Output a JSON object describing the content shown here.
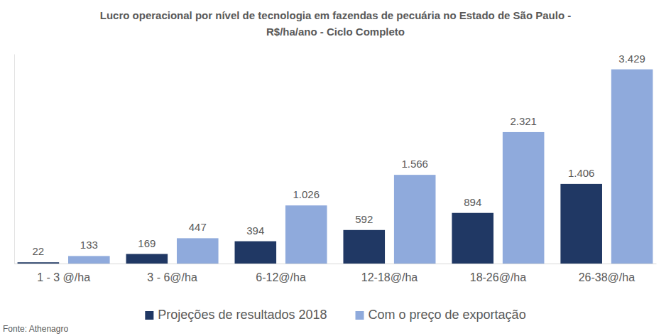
{
  "chart_data": {
    "type": "bar",
    "title": "Lucro operacional por nível de tecnologia em fazendas de pecuária no Estado de São Paulo - R$/ha/ano - Ciclo Completo",
    "source": "Fonte: Athenagro",
    "categories": [
      "1 - 3 @/ha",
      "3 - 6@/ha",
      "6-12@/ha",
      "12-18@/ha",
      "18-26@/ha",
      "26-38@/ha"
    ],
    "series": [
      {
        "name": "Projeções de resultados 2018",
        "color": "#203864",
        "values": [
          22,
          169,
          394,
          592,
          894,
          1406
        ],
        "value_labels": [
          "22",
          "169",
          "394",
          "592",
          "894",
          "1.406"
        ]
      },
      {
        "name": "Com o preço de exportação",
        "color": "#8faadc",
        "values": [
          133,
          447,
          1026,
          1566,
          2321,
          3429
        ],
        "value_labels": [
          "133",
          "447",
          "1.026",
          "1.566",
          "2.321",
          "3.429"
        ]
      }
    ],
    "ylim": [
      0,
      3700
    ],
    "grid": false,
    "legend": "bottom",
    "data_labels": true,
    "tick_labels": "x"
  }
}
